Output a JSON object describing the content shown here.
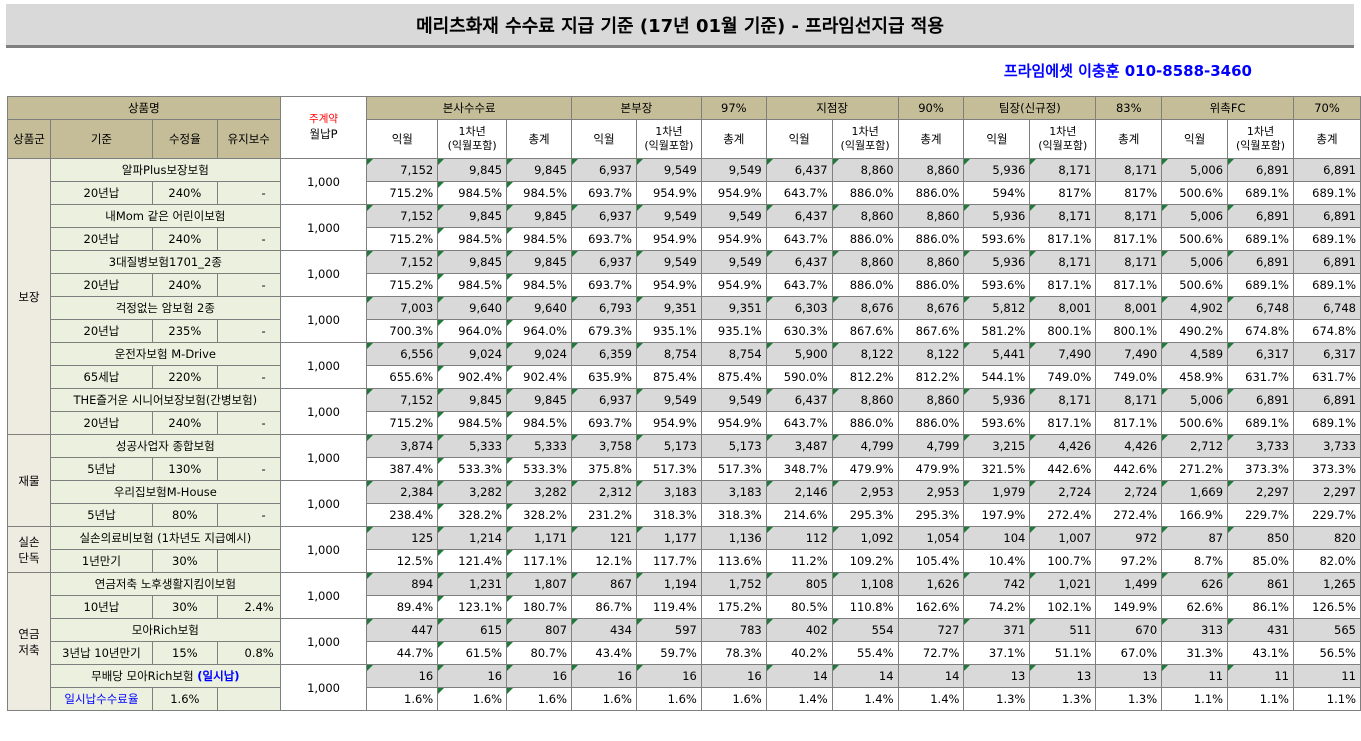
{
  "title": "메리츠화재 수수료 지급 기준 (17년 01월 기준) - 프라임선지급 적용",
  "contact": "프라임에셋 이충훈 010-8588-3460",
  "header": {
    "product_name": "상품명",
    "premium_red": "주계약",
    "premium": "월납P",
    "hq": "본사수수료",
    "bonbujang": "본부장",
    "bonbujang_rate": "97%",
    "jijeomjang": "지점장",
    "jijeomjang_rate": "90%",
    "timjang": "팀장(신규정)",
    "timjang_rate": "83%",
    "fc": "위촉FC",
    "fc_rate": "70%",
    "group": "상품군",
    "basis": "기준",
    "rate": "수정율",
    "maint": "유지보수",
    "c_month": "익월",
    "c_year1": "1차년",
    "c_year1_sub": "(익월포함)",
    "c_total": "총계"
  },
  "groups": [
    {
      "label": "보장",
      "products": [
        {
          "name": "알파Plus보장보험",
          "basis": "20년납",
          "rate": "240%",
          "maint": "-",
          "premium": "1,000",
          "amounts": [
            "7,152",
            "9,845",
            "9,845",
            "6,937",
            "9,549",
            "9,549",
            "6,437",
            "8,860",
            "8,860",
            "5,936",
            "8,171",
            "8,171",
            "5,006",
            "6,891",
            "6,891"
          ],
          "pcts": [
            "715.2%",
            "984.5%",
            "984.5%",
            "693.7%",
            "954.9%",
            "954.9%",
            "643.7%",
            "886.0%",
            "886.0%",
            "594%",
            "817%",
            "817%",
            "500.6%",
            "689.1%",
            "689.1%"
          ]
        },
        {
          "name": "내Mom 같은 어린이보험",
          "basis": "20년납",
          "rate": "240%",
          "maint": "-",
          "premium": "1,000",
          "amounts": [
            "7,152",
            "9,845",
            "9,845",
            "6,937",
            "9,549",
            "9,549",
            "6,437",
            "8,860",
            "8,860",
            "5,936",
            "8,171",
            "8,171",
            "5,006",
            "6,891",
            "6,891"
          ],
          "pcts": [
            "715.2%",
            "984.5%",
            "984.5%",
            "693.7%",
            "954.9%",
            "954.9%",
            "643.7%",
            "886.0%",
            "886.0%",
            "593.6%",
            "817.1%",
            "817.1%",
            "500.6%",
            "689.1%",
            "689.1%"
          ]
        },
        {
          "name": "3대질병보험1701_2종",
          "basis": "20년납",
          "rate": "240%",
          "maint": "-",
          "premium": "1,000",
          "amounts": [
            "7,152",
            "9,845",
            "9,845",
            "6,937",
            "9,549",
            "9,549",
            "6,437",
            "8,860",
            "8,860",
            "5,936",
            "8,171",
            "8,171",
            "5,006",
            "6,891",
            "6,891"
          ],
          "pcts": [
            "715.2%",
            "984.5%",
            "984.5%",
            "693.7%",
            "954.9%",
            "954.9%",
            "643.7%",
            "886.0%",
            "886.0%",
            "593.6%",
            "817.1%",
            "817.1%",
            "500.6%",
            "689.1%",
            "689.1%"
          ]
        },
        {
          "name": "걱정없는 암보험 2종",
          "basis": "20년납",
          "rate": "235%",
          "maint": "-",
          "premium": "1,000",
          "amounts": [
            "7,003",
            "9,640",
            "9,640",
            "6,793",
            "9,351",
            "9,351",
            "6,303",
            "8,676",
            "8,676",
            "5,812",
            "8,001",
            "8,001",
            "4,902",
            "6,748",
            "6,748"
          ],
          "pcts": [
            "700.3%",
            "964.0%",
            "964.0%",
            "679.3%",
            "935.1%",
            "935.1%",
            "630.3%",
            "867.6%",
            "867.6%",
            "581.2%",
            "800.1%",
            "800.1%",
            "490.2%",
            "674.8%",
            "674.8%"
          ]
        },
        {
          "name": "운전자보험 M-Drive",
          "basis": "65세납",
          "rate": "220%",
          "maint": "-",
          "premium": "1,000",
          "amounts": [
            "6,556",
            "9,024",
            "9,024",
            "6,359",
            "8,754",
            "8,754",
            "5,900",
            "8,122",
            "8,122",
            "5,441",
            "7,490",
            "7,490",
            "4,589",
            "6,317",
            "6,317"
          ],
          "pcts": [
            "655.6%",
            "902.4%",
            "902.4%",
            "635.9%",
            "875.4%",
            "875.4%",
            "590.0%",
            "812.2%",
            "812.2%",
            "544.1%",
            "749.0%",
            "749.0%",
            "458.9%",
            "631.7%",
            "631.7%"
          ]
        },
        {
          "name": "THE즐거운 시니어보장보험(간병보험)",
          "basis": "20년납",
          "rate": "240%",
          "maint": "-",
          "premium": "1,000",
          "amounts": [
            "7,152",
            "9,845",
            "9,845",
            "6,937",
            "9,549",
            "9,549",
            "6,437",
            "8,860",
            "8,860",
            "5,936",
            "8,171",
            "8,171",
            "5,006",
            "6,891",
            "6,891"
          ],
          "pcts": [
            "715.2%",
            "984.5%",
            "984.5%",
            "693.7%",
            "954.9%",
            "954.9%",
            "643.7%",
            "886.0%",
            "886.0%",
            "593.6%",
            "817.1%",
            "817.1%",
            "500.6%",
            "689.1%",
            "689.1%"
          ]
        }
      ]
    },
    {
      "label": "재물",
      "products": [
        {
          "name": "성공사업자 종합보험",
          "basis": "5년납",
          "rate": "130%",
          "maint": "-",
          "premium": "1,000",
          "amounts": [
            "3,874",
            "5,333",
            "5,333",
            "3,758",
            "5,173",
            "5,173",
            "3,487",
            "4,799",
            "4,799",
            "3,215",
            "4,426",
            "4,426",
            "2,712",
            "3,733",
            "3,733"
          ],
          "pcts": [
            "387.4%",
            "533.3%",
            "533.3%",
            "375.8%",
            "517.3%",
            "517.3%",
            "348.7%",
            "479.9%",
            "479.9%",
            "321.5%",
            "442.6%",
            "442.6%",
            "271.2%",
            "373.3%",
            "373.3%"
          ]
        },
        {
          "name": "우리집보험M-House",
          "basis": "5년납",
          "rate": "80%",
          "maint": "-",
          "premium": "1,000",
          "amounts": [
            "2,384",
            "3,282",
            "3,282",
            "2,312",
            "3,183",
            "3,183",
            "2,146",
            "2,953",
            "2,953",
            "1,979",
            "2,724",
            "2,724",
            "1,669",
            "2,297",
            "2,297"
          ],
          "pcts": [
            "238.4%",
            "328.2%",
            "328.2%",
            "231.2%",
            "318.3%",
            "318.3%",
            "214.6%",
            "295.3%",
            "295.3%",
            "197.9%",
            "272.4%",
            "272.4%",
            "166.9%",
            "229.7%",
            "229.7%"
          ]
        }
      ]
    },
    {
      "label": "실손\n단독",
      "products": [
        {
          "name": "실손의료비보험 (1차년도 지급예시)",
          "basis": "1년만기",
          "rate": "30%",
          "maint": "",
          "premium": "1,000",
          "amounts": [
            "125",
            "1,214",
            "1,171",
            "121",
            "1,177",
            "1,136",
            "112",
            "1,092",
            "1,054",
            "104",
            "1,007",
            "972",
            "87",
            "850",
            "820"
          ],
          "pcts": [
            "12.5%",
            "121.4%",
            "117.1%",
            "12.1%",
            "117.7%",
            "113.6%",
            "11.2%",
            "109.2%",
            "105.4%",
            "10.4%",
            "100.7%",
            "97.2%",
            "8.7%",
            "85.0%",
            "82.0%"
          ]
        }
      ]
    },
    {
      "label": "연금\n저축",
      "products": [
        {
          "name": "연금저축 노후생활지킴이보험",
          "basis": "10년납",
          "rate": "30%",
          "maint": "2.4%",
          "premium": "1,000",
          "amounts": [
            "894",
            "1,231",
            "1,807",
            "867",
            "1,194",
            "1,752",
            "805",
            "1,108",
            "1,626",
            "742",
            "1,021",
            "1,499",
            "626",
            "861",
            "1,265"
          ],
          "pcts": [
            "89.4%",
            "123.1%",
            "180.7%",
            "86.7%",
            "119.4%",
            "175.2%",
            "80.5%",
            "110.8%",
            "162.6%",
            "74.2%",
            "102.1%",
            "149.9%",
            "62.6%",
            "86.1%",
            "126.5%"
          ]
        },
        {
          "name": "모아Rich보험",
          "basis": "3년납 10년만기",
          "rate": "15%",
          "maint": "0.8%",
          "premium": "1,000",
          "amounts": [
            "447",
            "615",
            "807",
            "434",
            "597",
            "783",
            "402",
            "554",
            "727",
            "371",
            "511",
            "670",
            "313",
            "431",
            "565"
          ],
          "pcts": [
            "44.7%",
            "61.5%",
            "80.7%",
            "43.4%",
            "59.7%",
            "78.3%",
            "40.2%",
            "55.4%",
            "72.7%",
            "37.1%",
            "51.1%",
            "67.0%",
            "31.3%",
            "43.1%",
            "56.5%"
          ]
        },
        {
          "name": "무배당 모아Rich보험",
          "name_suffix": "(일시납)",
          "basis": "일시납수수료율",
          "rate": "1.6%",
          "maint": "",
          "premium": "1,000",
          "amounts": [
            "16",
            "16",
            "16",
            "16",
            "16",
            "16",
            "14",
            "14",
            "14",
            "13",
            "13",
            "13",
            "11",
            "11",
            "11"
          ],
          "pcts": [
            "1.6%",
            "1.6%",
            "1.6%",
            "1.6%",
            "1.6%",
            "1.6%",
            "1.4%",
            "1.4%",
            "1.4%",
            "1.3%",
            "1.3%",
            "1.3%",
            "1.1%",
            "1.1%",
            "1.1%"
          ]
        }
      ]
    }
  ]
}
